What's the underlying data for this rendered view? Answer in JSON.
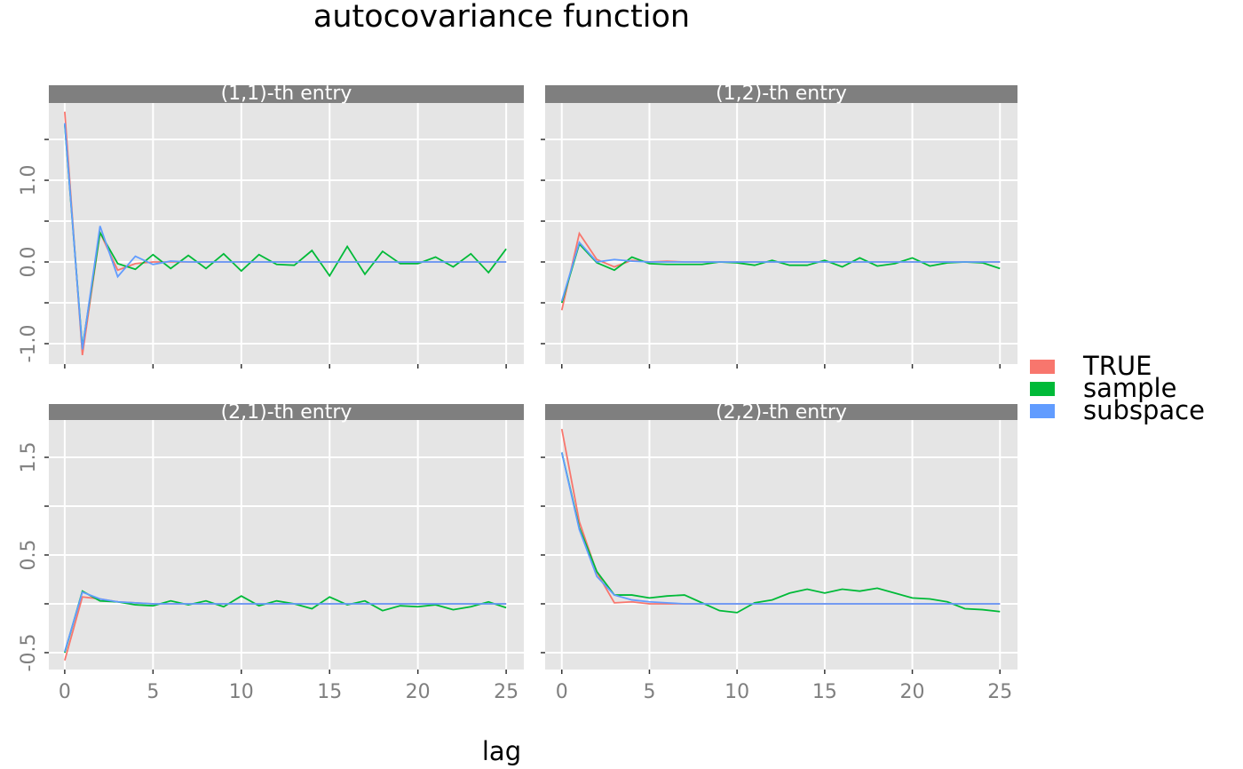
{
  "title": "autocovariance function",
  "x_label": "lag",
  "chart_data": [
    {
      "type": "line",
      "title": "(1,1)-th entry",
      "x": [
        0,
        1,
        2,
        3,
        4,
        5,
        6,
        7,
        8,
        9,
        10,
        11,
        12,
        13,
        14,
        15,
        16,
        17,
        18,
        19,
        20,
        21,
        22,
        23,
        24,
        25
      ],
      "series": [
        {
          "name": "TRUE",
          "color": "#F8766D",
          "values": [
            1.84,
            -1.14,
            0.36,
            -0.1,
            -0.02,
            0,
            0,
            0,
            0,
            0,
            0,
            0,
            0,
            0,
            0,
            0,
            0,
            0,
            0,
            0,
            0,
            0,
            0,
            0,
            0,
            0
          ]
        },
        {
          "name": "sample",
          "color": "#00BA38",
          "values": [
            1.68,
            -1.05,
            0.36,
            -0.02,
            -0.09,
            0.09,
            -0.08,
            0.08,
            -0.08,
            0.1,
            -0.11,
            0.09,
            -0.03,
            -0.04,
            0.14,
            -0.17,
            0.19,
            -0.15,
            0.13,
            -0.02,
            -0.02,
            0.06,
            -0.06,
            0.1,
            -0.13,
            0.16
          ]
        },
        {
          "name": "subspace",
          "color": "#619CFF",
          "values": [
            1.7,
            -1.07,
            0.44,
            -0.18,
            0.07,
            -0.03,
            0.01,
            0,
            0,
            0,
            0,
            0,
            0,
            0,
            0,
            0,
            0,
            0,
            0,
            0,
            0,
            0,
            0,
            0,
            0,
            0
          ]
        }
      ],
      "xlim": [
        -0.9,
        26.0
      ],
      "ylim": [
        -1.25,
        1.946
      ],
      "xticks": [
        {
          "value": 0,
          "label": null
        },
        {
          "value": 5,
          "label": null
        },
        {
          "value": 10,
          "label": null
        },
        {
          "value": 15,
          "label": null
        },
        {
          "value": 20,
          "label": null
        },
        {
          "value": 25,
          "label": null
        }
      ],
      "yticks": [
        {
          "value": -1,
          "label": "-1.0"
        },
        {
          "value": -0.5,
          "label": null
        },
        {
          "value": 0,
          "label": "0.0"
        },
        {
          "value": 0.5,
          "label": null
        },
        {
          "value": 1,
          "label": "1.0"
        },
        {
          "value": 1.5,
          "label": null
        }
      ],
      "grid": true
    },
    {
      "type": "line",
      "title": "(1,2)-th entry",
      "x": [
        0,
        1,
        2,
        3,
        4,
        5,
        6,
        7,
        8,
        9,
        10,
        11,
        12,
        13,
        14,
        15,
        16,
        17,
        18,
        19,
        20,
        21,
        22,
        23,
        24,
        25
      ],
      "series": [
        {
          "name": "TRUE",
          "color": "#F8766D",
          "values": [
            -0.59,
            0.35,
            0.03,
            -0.06,
            0.02,
            0,
            0.01,
            0,
            0,
            0,
            0,
            0,
            0,
            0,
            0,
            0,
            0,
            0,
            0,
            0,
            0,
            0,
            0,
            0,
            0,
            0
          ]
        },
        {
          "name": "sample",
          "color": "#00BA38",
          "values": [
            -0.5,
            0.22,
            -0.01,
            -0.1,
            0.06,
            -0.02,
            -0.03,
            -0.03,
            -0.03,
            0,
            -0.01,
            -0.04,
            0.02,
            -0.04,
            -0.04,
            0.02,
            -0.06,
            0.05,
            -0.05,
            -0.02,
            0.05,
            -0.05,
            -0.01,
            0,
            -0.01,
            -0.08
          ]
        },
        {
          "name": "subspace",
          "color": "#619CFF",
          "values": [
            -0.48,
            0.24,
            0,
            0.03,
            0.01,
            0,
            0,
            0,
            0,
            0,
            0,
            0,
            0,
            0,
            0,
            0,
            0,
            0,
            0,
            0,
            0,
            0,
            0,
            0,
            0,
            0
          ]
        }
      ],
      "xlim": [
        -0.95,
        26.0
      ],
      "ylim": [
        -1.25,
        1.946
      ],
      "xticks": [
        {
          "value": 0,
          "label": null
        },
        {
          "value": 5,
          "label": null
        },
        {
          "value": 10,
          "label": null
        },
        {
          "value": 15,
          "label": null
        },
        {
          "value": 20,
          "label": null
        },
        {
          "value": 25,
          "label": null
        }
      ],
      "yticks": [
        {
          "value": -1,
          "label": null
        },
        {
          "value": -0.5,
          "label": null
        },
        {
          "value": 0,
          "label": null
        },
        {
          "value": 0.5,
          "label": null
        },
        {
          "value": 1,
          "label": null
        },
        {
          "value": 1.5,
          "label": null
        }
      ],
      "grid": true
    },
    {
      "type": "line",
      "title": "(2,1)-th entry",
      "x": [
        0,
        1,
        2,
        3,
        4,
        5,
        6,
        7,
        8,
        9,
        10,
        11,
        12,
        13,
        14,
        15,
        16,
        17,
        18,
        19,
        20,
        21,
        22,
        23,
        24,
        25
      ],
      "series": [
        {
          "name": "TRUE",
          "color": "#F8766D",
          "values": [
            -0.58,
            0.07,
            0.05,
            0.02,
            0.01,
            0,
            0,
            0,
            0,
            0,
            0,
            0,
            0,
            0,
            0,
            0,
            0,
            0,
            0,
            0,
            0,
            0,
            0,
            0,
            0,
            0
          ]
        },
        {
          "name": "sample",
          "color": "#00BA38",
          "values": [
            -0.5,
            0.13,
            0.03,
            0.02,
            -0.01,
            -0.02,
            0.03,
            -0.01,
            0.03,
            -0.03,
            0.08,
            -0.02,
            0.03,
            0,
            -0.05,
            0.07,
            -0.01,
            0.03,
            -0.07,
            -0.02,
            -0.03,
            -0.01,
            -0.06,
            -0.03,
            0.02,
            -0.04
          ]
        },
        {
          "name": "subspace",
          "color": "#619CFF",
          "values": [
            -0.49,
            0.12,
            0.05,
            0.02,
            0.01,
            0,
            0,
            0,
            0,
            0,
            0,
            0,
            0,
            0,
            0,
            0,
            0,
            0,
            0,
            0,
            0,
            0,
            0,
            0,
            0,
            0
          ]
        }
      ],
      "xlim": [
        -0.9,
        26.0
      ],
      "ylim": [
        -0.673,
        1.882
      ],
      "xticks": [
        0,
        5,
        10,
        15,
        20,
        25
      ],
      "yticks": [
        {
          "value": -0.5,
          "label": "-0.5"
        },
        {
          "value": 0,
          "label": null
        },
        {
          "value": 0.5,
          "label": "0.5"
        },
        {
          "value": 1,
          "label": null
        },
        {
          "value": 1.5,
          "label": "1.5"
        }
      ],
      "grid": true
    },
    {
      "type": "line",
      "title": "(2,2)-th entry",
      "x": [
        0,
        1,
        2,
        3,
        4,
        5,
        6,
        7,
        8,
        9,
        10,
        11,
        12,
        13,
        14,
        15,
        16,
        17,
        18,
        19,
        20,
        21,
        22,
        23,
        24,
        25
      ],
      "series": [
        {
          "name": "TRUE",
          "color": "#F8766D",
          "values": [
            1.79,
            0.84,
            0.32,
            0.01,
            0.02,
            0,
            0,
            0,
            0,
            0,
            0,
            0,
            0,
            0,
            0,
            0,
            0,
            0,
            0,
            0,
            0,
            0,
            0,
            0,
            0,
            0
          ]
        },
        {
          "name": "sample",
          "color": "#00BA38",
          "values": [
            1.55,
            0.78,
            0.33,
            0.09,
            0.09,
            0.06,
            0.08,
            0.09,
            0.01,
            -0.07,
            -0.09,
            0.01,
            0.04,
            0.11,
            0.15,
            0.11,
            0.15,
            0.13,
            0.16,
            0.11,
            0.06,
            0.05,
            0.02,
            -0.05,
            -0.06,
            -0.08
          ]
        },
        {
          "name": "subspace",
          "color": "#619CFF",
          "values": [
            1.55,
            0.76,
            0.28,
            0.09,
            0.04,
            0.02,
            0.01,
            0,
            0,
            0,
            0,
            0,
            0,
            0,
            0,
            0,
            0,
            0,
            0,
            0,
            0,
            0,
            0,
            0,
            0,
            0
          ]
        }
      ],
      "xlim": [
        -0.95,
        26.0
      ],
      "ylim": [
        -0.673,
        1.882
      ],
      "xticks": [
        0,
        5,
        10,
        15,
        20,
        25
      ],
      "yticks": [
        {
          "value": -0.5,
          "label": null
        },
        {
          "value": 0,
          "label": null
        },
        {
          "value": 0.5,
          "label": null
        },
        {
          "value": 1,
          "label": null
        },
        {
          "value": 1.5,
          "label": null
        }
      ],
      "grid": true
    }
  ]
}
